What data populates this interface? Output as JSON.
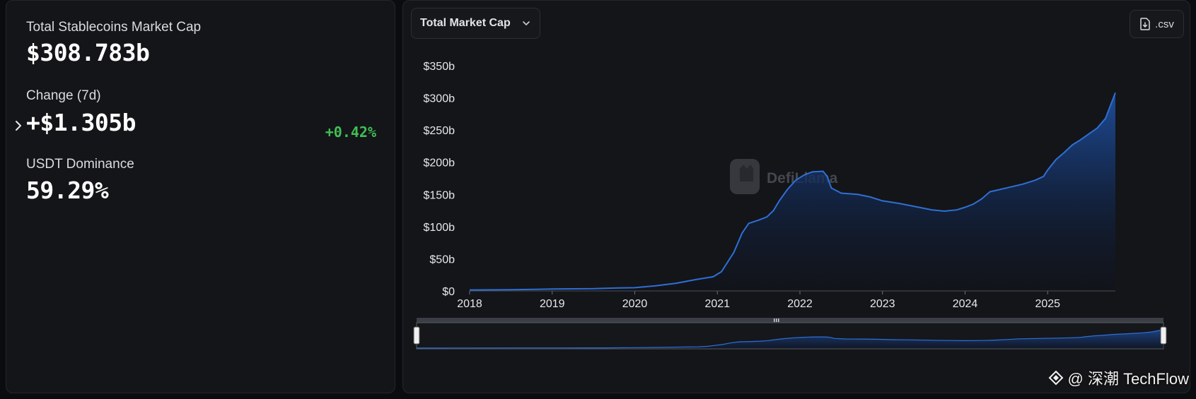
{
  "summary": {
    "total_label": "Total Stablecoins Market Cap",
    "total_value": "$308.783b",
    "change_label": "Change (7d)",
    "change_value": "+$1.305b",
    "change_pct": "+0.42%",
    "dominance_label": "USDT Dominance",
    "dominance_value": "59.29%"
  },
  "toolbar": {
    "dropdown_label": "Total Market Cap",
    "csv_label": ".csv"
  },
  "watermark": "DefiLlama",
  "overlay_watermark": "@ 深潮 TechFlow",
  "colors": {
    "line": "#2f6fd6",
    "area_top": "#1f4fa0",
    "positive": "#3fbf55",
    "panel": "#141518"
  },
  "chart_data": {
    "type": "area",
    "title": "",
    "xlabel": "",
    "ylabel": "",
    "x_ticks": [
      "2018",
      "2019",
      "2020",
      "2021",
      "2022",
      "2023",
      "2024",
      "2025"
    ],
    "y_ticks": [
      "$0",
      "$50b",
      "$100b",
      "$150b",
      "$200b",
      "$250b",
      "$300b",
      "$350b"
    ],
    "ylim": [
      0,
      350
    ],
    "xlim": [
      2018.0,
      2025.82
    ],
    "grid": false,
    "series": [
      {
        "values_unit": "billion USD",
        "x": [
          2018.0,
          2018.5,
          2019.0,
          2019.5,
          2019.75,
          2020.0,
          2020.25,
          2020.5,
          2020.75,
          2020.95,
          2021.05,
          2021.2,
          2021.3,
          2021.38,
          2021.5,
          2021.6,
          2021.68,
          2021.75,
          2021.85,
          2021.95,
          2022.05,
          2022.15,
          2022.28,
          2022.33,
          2022.38,
          2022.5,
          2022.7,
          2022.85,
          2023.0,
          2023.2,
          2023.4,
          2023.6,
          2023.75,
          2023.9,
          2024.0,
          2024.1,
          2024.2,
          2024.3,
          2024.5,
          2024.7,
          2024.85,
          2024.95,
          2025.0,
          2025.1,
          2025.2,
          2025.3,
          2025.4,
          2025.5,
          2025.6,
          2025.7,
          2025.82
        ],
        "values": [
          1.5,
          2,
          3,
          3.5,
          4.5,
          5,
          8,
          12,
          18,
          22,
          30,
          60,
          90,
          105,
          110,
          115,
          125,
          140,
          158,
          172,
          180,
          185,
          186,
          178,
          160,
          152,
          150,
          146,
          140,
          136,
          131,
          126,
          124,
          126,
          130,
          135,
          143,
          154,
          160,
          166,
          172,
          178,
          188,
          204,
          215,
          227,
          235,
          244,
          253,
          268,
          308
        ]
      }
    ]
  }
}
